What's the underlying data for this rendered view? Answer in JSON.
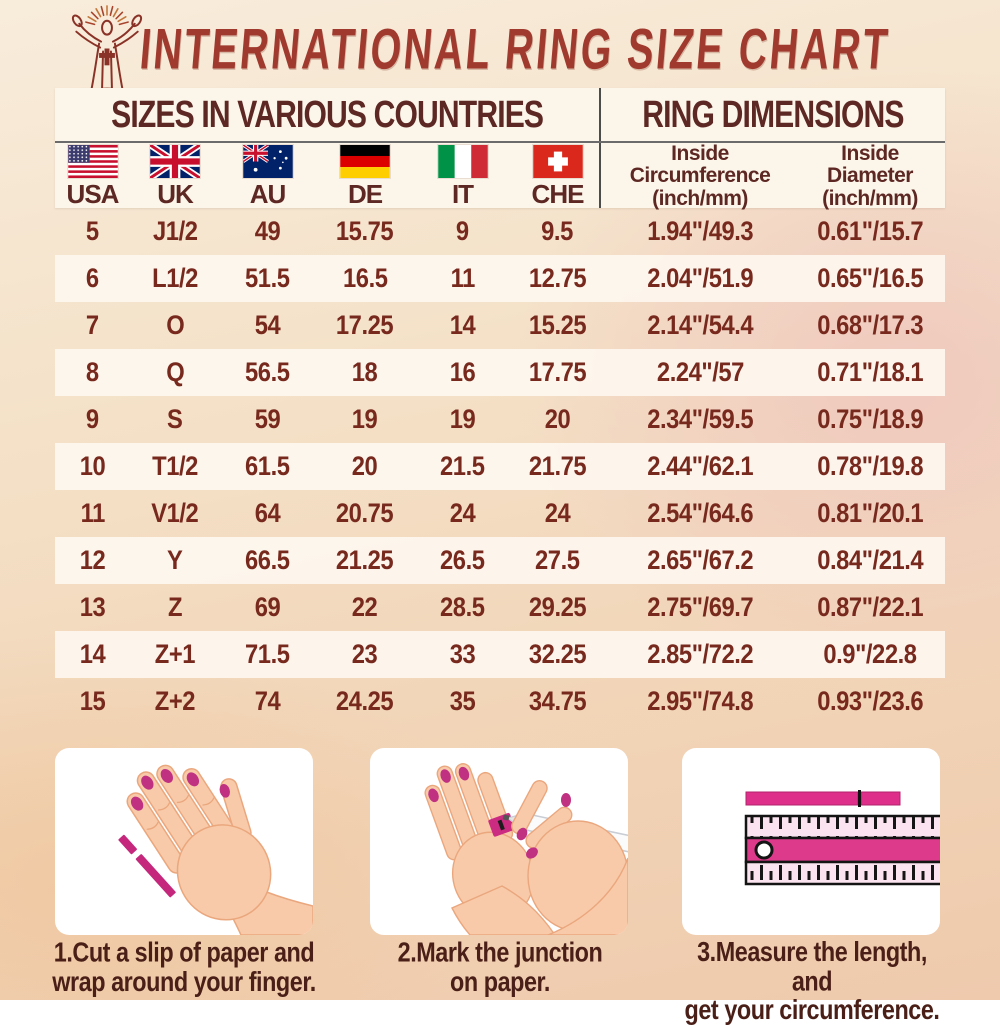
{
  "title": "INTERNATIONAL RING SIZE CHART",
  "logo": {
    "name": "jesus-figure-logo"
  },
  "chart_data": {
    "type": "table",
    "title": "INTERNATIONAL RING SIZE CHART",
    "section_headers": [
      "SIZES IN VARIOUS COUNTRIES",
      "RING DIMENSIONS"
    ],
    "columns": [
      "USA",
      "UK",
      "AU",
      "DE",
      "IT",
      "CHE",
      "Inside Circumference (inch/mm)",
      "Inside Diameter (inch/mm)"
    ],
    "rows": [
      [
        "5",
        "J1/2",
        "49",
        "15.75",
        "9",
        "9.5",
        "1.94\"/49.3",
        "0.61\"/15.7"
      ],
      [
        "6",
        "L1/2",
        "51.5",
        "16.5",
        "11",
        "12.75",
        "2.04\"/51.9",
        "0.65\"/16.5"
      ],
      [
        "7",
        "O",
        "54",
        "17.25",
        "14",
        "15.25",
        "2.14\"/54.4",
        "0.68\"/17.3"
      ],
      [
        "8",
        "Q",
        "56.5",
        "18",
        "16",
        "17.75",
        "2.24\"/57",
        "0.71\"/18.1"
      ],
      [
        "9",
        "S",
        "59",
        "19",
        "19",
        "20",
        "2.34\"/59.5",
        "0.75\"/18.9"
      ],
      [
        "10",
        "T1/2",
        "61.5",
        "20",
        "21.5",
        "21.75",
        "2.44\"/62.1",
        "0.78\"/19.8"
      ],
      [
        "11",
        "V1/2",
        "64",
        "20.75",
        "24",
        "24",
        "2.54\"/64.6",
        "0.81\"/20.1"
      ],
      [
        "12",
        "Y",
        "66.5",
        "21.25",
        "26.5",
        "27.5",
        "2.65\"/67.2",
        "0.84\"/21.4"
      ],
      [
        "13",
        "Z",
        "69",
        "22",
        "28.5",
        "29.25",
        "2.75\"/69.7",
        "0.87\"/22.1"
      ],
      [
        "14",
        "Z+1",
        "71.5",
        "23",
        "33",
        "32.25",
        "2.85\"/72.2",
        "0.9\"/22.8"
      ],
      [
        "15",
        "Z+2",
        "74",
        "24.25",
        "35",
        "34.75",
        "2.95\"/74.8",
        "0.93\"/23.6"
      ]
    ]
  },
  "table": {
    "section_headers": {
      "left": "SIZES IN VARIOUS COUNTRIES",
      "right": "RING DIMENSIONS"
    },
    "countries": [
      {
        "code": "USA",
        "flag_icon": "usa-flag-icon"
      },
      {
        "code": "UK",
        "flag_icon": "uk-flag-icon"
      },
      {
        "code": "AU",
        "flag_icon": "au-flag-icon"
      },
      {
        "code": "DE",
        "flag_icon": "de-flag-icon"
      },
      {
        "code": "IT",
        "flag_icon": "it-flag-icon"
      },
      {
        "code": "CHE",
        "flag_icon": "che-flag-icon"
      }
    ],
    "dimension_headers": [
      {
        "lines": [
          "Inside",
          "Circumference",
          "(inch/mm)"
        ]
      },
      {
        "lines": [
          "Inside",
          "Diameter",
          "(inch/mm)"
        ]
      }
    ]
  },
  "instructions": {
    "panels": [
      {
        "caption": [
          "1.Cut a slip of paper and",
          "wrap around your finger."
        ],
        "illustration": "hand-with-paper-strip"
      },
      {
        "caption": [
          "2.Mark the junction",
          "on paper."
        ],
        "illustration": "hands-marking-with-pen"
      },
      {
        "caption": [
          "3.Measure the length, and",
          "get your circumference."
        ],
        "illustration": "ruler-measuring-strip"
      }
    ]
  },
  "colors": {
    "title_red": "#a03a2e",
    "header_maroon": "#5d2823",
    "data_maroon": "#78291e",
    "caption_maroon": "#4a1f17",
    "accent_magenta": "#cb2b80",
    "band_cream": "#fdf7ee",
    "header_cream": "#fcf5e9",
    "background_peach": "#f1d2b4",
    "ruler_pink": "#dd3a8c"
  }
}
